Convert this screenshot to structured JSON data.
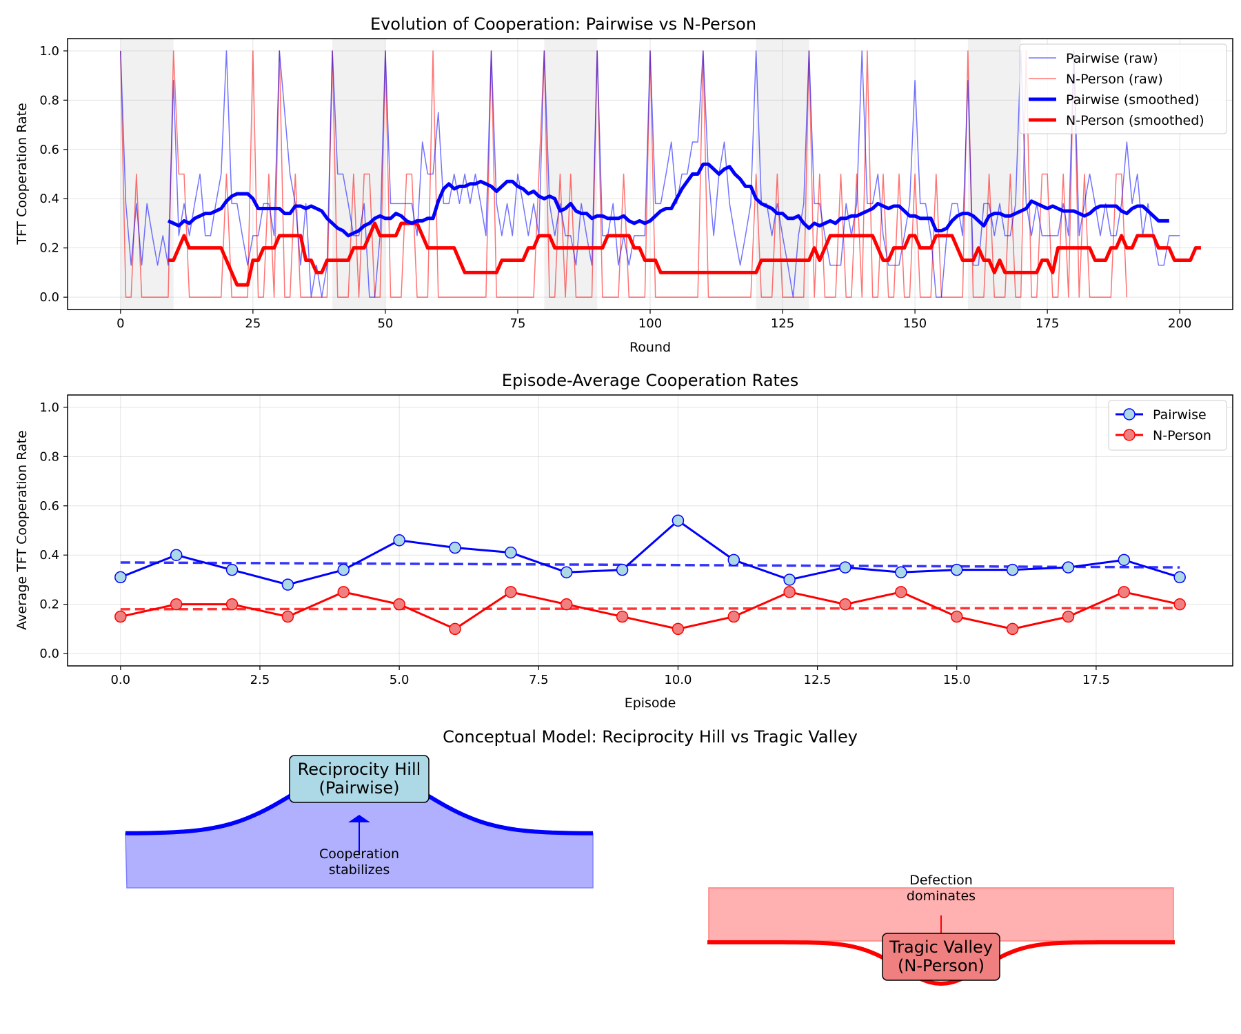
{
  "chart_data": [
    {
      "type": "line",
      "title": "Evolution of Cooperation: Pairwise vs N-Person",
      "xlabel": "Round",
      "ylabel": "TFT Cooperation Rate",
      "xlim": [
        -10,
        210
      ],
      "ylim": [
        -0.05,
        1.05
      ],
      "xticks": [
        0,
        25,
        50,
        75,
        100,
        125,
        150,
        175,
        200
      ],
      "yticks": [
        0.0,
        0.2,
        0.4,
        0.6,
        0.8,
        1.0
      ],
      "grid": true,
      "legend_position": "top-right",
      "shaded_episodes": [
        [
          0,
          10
        ],
        [
          40,
          50
        ],
        [
          80,
          90
        ],
        [
          120,
          130
        ],
        [
          160,
          170
        ]
      ],
      "x_start": 0,
      "smoothed_x_start": 9,
      "series": [
        {
          "name": "Pairwise (raw)",
          "color": "#0000ff",
          "values": [
            1.0,
            0.38,
            0.13,
            0.38,
            0.13,
            0.38,
            0.25,
            0.13,
            0.25,
            0.13,
            0.88,
            0.25,
            0.38,
            0.25,
            0.38,
            0.5,
            0.25,
            0.25,
            0.38,
            0.5,
            1.0,
            0.38,
            0.38,
            0.25,
            0.13,
            0.25,
            0.25,
            0.38,
            0.38,
            0.25,
            1.0,
            0.75,
            0.5,
            0.38,
            0.13,
            0.38,
            0.0,
            0.13,
            0.0,
            0.13,
            1.0,
            0.5,
            0.5,
            0.38,
            0.25,
            0.25,
            0.38,
            0.0,
            0.0,
            0.25,
            1.0,
            0.38,
            0.38,
            0.38,
            0.38,
            0.38,
            0.25,
            0.63,
            0.5,
            0.5,
            0.75,
            0.38,
            0.38,
            0.5,
            0.38,
            0.5,
            0.38,
            0.5,
            0.38,
            0.25,
            1.0,
            0.38,
            0.25,
            0.38,
            0.25,
            0.5,
            0.38,
            0.25,
            0.38,
            0.25,
            1.0,
            0.38,
            0.25,
            0.38,
            0.25,
            0.25,
            0.13,
            0.38,
            0.25,
            0.13,
            1.0,
            0.25,
            0.25,
            0.38,
            0.13,
            0.25,
            0.13,
            0.25,
            0.25,
            0.25,
            1.0,
            0.38,
            0.38,
            0.5,
            0.63,
            0.38,
            0.5,
            0.5,
            0.63,
            0.63,
            1.0,
            0.5,
            0.25,
            0.5,
            0.63,
            0.38,
            0.25,
            0.13,
            0.25,
            0.38,
            1.0,
            0.38,
            0.38,
            0.25,
            0.38,
            0.25,
            0.13,
            0.0,
            0.25,
            0.38,
            1.0,
            0.38,
            0.38,
            0.25,
            0.13,
            0.13,
            0.13,
            0.38,
            0.25,
            0.38,
            1.0,
            0.38,
            0.38,
            0.5,
            0.25,
            0.13,
            0.13,
            0.13,
            0.25,
            0.38,
            0.88,
            0.38,
            0.38,
            0.25,
            0.0,
            0.0,
            0.25,
            0.38,
            0.38,
            0.25,
            0.88,
            0.13,
            0.13,
            0.38,
            0.38,
            0.25,
            0.38,
            0.25,
            0.25,
            0.38,
            1.0,
            0.38,
            0.25,
            0.38,
            0.25,
            0.25,
            0.25,
            0.25,
            0.38,
            0.25,
            1.0,
            0.25,
            0.38,
            0.5,
            0.38,
            0.25,
            0.38,
            0.25,
            0.25,
            0.38,
            0.63,
            0.38,
            0.5,
            0.25,
            0.38,
            0.25,
            0.13,
            0.13,
            0.25,
            0.25,
            0.25
          ]
        },
        {
          "name": "N-Person (raw)",
          "color": "#ff0000",
          "values": [
            1.0,
            0.0,
            0.0,
            0.5,
            0.0,
            0.0,
            0.0,
            0.0,
            0.0,
            0.0,
            1.0,
            0.5,
            0.5,
            0.0,
            0.0,
            0.0,
            0.0,
            0.0,
            0.0,
            0.0,
            0.5,
            0.0,
            0.0,
            0.0,
            0.0,
            1.0,
            0.0,
            0.0,
            0.5,
            0.0,
            1.0,
            0.0,
            0.0,
            0.5,
            0.0,
            0.0,
            0.0,
            0.0,
            0.0,
            0.0,
            1.0,
            0.0,
            0.0,
            0.0,
            0.5,
            0.0,
            0.5,
            0.5,
            0.0,
            0.0,
            1.0,
            0.0,
            0.0,
            0.0,
            0.5,
            0.5,
            0.0,
            0.0,
            0.0,
            1.0,
            0.0,
            0.0,
            0.0,
            0.0,
            0.0,
            0.0,
            0.0,
            0.0,
            0.0,
            0.0,
            1.0,
            0.0,
            0.0,
            0.0,
            0.0,
            0.0,
            0.0,
            0.0,
            0.0,
            0.5,
            1.0,
            0.0,
            0.0,
            0.5,
            0.0,
            0.5,
            0.0,
            0.0,
            0.0,
            0.0,
            1.0,
            0.0,
            0.0,
            0.0,
            0.0,
            0.5,
            0.0,
            0.0,
            0.0,
            0.0,
            1.0,
            0.0,
            0.0,
            0.0,
            0.0,
            0.0,
            0.0,
            0.0,
            0.0,
            0.0,
            1.0,
            0.0,
            0.0,
            0.0,
            0.0,
            0.0,
            0.0,
            0.0,
            0.0,
            0.0,
            0.5,
            0.0,
            0.0,
            0.0,
            0.5,
            0.0,
            0.0,
            0.0,
            0.0,
            0.0,
            1.0,
            0.0,
            0.5,
            0.0,
            0.0,
            0.0,
            0.5,
            0.0,
            0.0,
            0.5,
            0.0,
            1.0,
            0.0,
            0.0,
            0.5,
            0.0,
            0.0,
            0.5,
            0.0,
            0.0,
            0.5,
            0.0,
            0.0,
            0.0,
            0.5,
            0.0,
            0.0,
            0.0,
            0.0,
            0.0,
            1.0,
            0.0,
            0.0,
            0.0,
            0.5,
            0.0,
            0.0,
            0.0,
            0.5,
            0.0,
            0.0,
            1.0,
            0.0,
            0.0,
            0.5,
            0.5,
            0.0,
            0.0,
            0.5,
            0.0,
            1.0,
            0.0,
            0.5,
            0.0,
            0.0,
            0.0,
            0.0,
            0.0,
            0.5,
            0.5,
            0.0
          ]
        },
        {
          "name": "Pairwise (smoothed)",
          "color": "#0000ff",
          "values": [
            0.31,
            0.3,
            0.29,
            0.31,
            0.3,
            0.32,
            0.33,
            0.34,
            0.34,
            0.35,
            0.36,
            0.39,
            0.41,
            0.42,
            0.42,
            0.42,
            0.4,
            0.36,
            0.36,
            0.36,
            0.36,
            0.36,
            0.34,
            0.34,
            0.37,
            0.37,
            0.36,
            0.37,
            0.36,
            0.35,
            0.32,
            0.3,
            0.28,
            0.27,
            0.25,
            0.26,
            0.27,
            0.29,
            0.3,
            0.32,
            0.33,
            0.32,
            0.32,
            0.34,
            0.33,
            0.31,
            0.3,
            0.31,
            0.31,
            0.32,
            0.32,
            0.39,
            0.44,
            0.46,
            0.44,
            0.45,
            0.45,
            0.46,
            0.46,
            0.47,
            0.46,
            0.45,
            0.43,
            0.45,
            0.47,
            0.47,
            0.45,
            0.44,
            0.42,
            0.43,
            0.41,
            0.4,
            0.41,
            0.4,
            0.35,
            0.36,
            0.38,
            0.35,
            0.34,
            0.34,
            0.32,
            0.33,
            0.33,
            0.32,
            0.32,
            0.32,
            0.33,
            0.31,
            0.3,
            0.31,
            0.3,
            0.31,
            0.33,
            0.35,
            0.36,
            0.36,
            0.4,
            0.44,
            0.47,
            0.5,
            0.5,
            0.54,
            0.54,
            0.52,
            0.5,
            0.52,
            0.53,
            0.5,
            0.48,
            0.45,
            0.45,
            0.4,
            0.38,
            0.37,
            0.36,
            0.34,
            0.34,
            0.32,
            0.32,
            0.33,
            0.3,
            0.28,
            0.3,
            0.29,
            0.3,
            0.31,
            0.3,
            0.32,
            0.32,
            0.33,
            0.33,
            0.34,
            0.35,
            0.36,
            0.38,
            0.37,
            0.36,
            0.37,
            0.37,
            0.35,
            0.33,
            0.33,
            0.32,
            0.32,
            0.32,
            0.27,
            0.27,
            0.28,
            0.31,
            0.33,
            0.34,
            0.34,
            0.33,
            0.31,
            0.29,
            0.33,
            0.34,
            0.34,
            0.33,
            0.33,
            0.34,
            0.35,
            0.36,
            0.39,
            0.38,
            0.37,
            0.36,
            0.37,
            0.36,
            0.35,
            0.35,
            0.35,
            0.34,
            0.33,
            0.34,
            0.36,
            0.37,
            0.37,
            0.37,
            0.37,
            0.35,
            0.34,
            0.36,
            0.37,
            0.37,
            0.35,
            0.33,
            0.31,
            0.31,
            0.31
          ]
        },
        {
          "name": "N-Person (smoothed)",
          "color": "#ff0000",
          "values": [
            0.15,
            0.15,
            0.2,
            0.25,
            0.2,
            0.2,
            0.2,
            0.2,
            0.2,
            0.2,
            0.2,
            0.15,
            0.1,
            0.05,
            0.05,
            0.05,
            0.15,
            0.15,
            0.2,
            0.2,
            0.2,
            0.25,
            0.25,
            0.25,
            0.25,
            0.25,
            0.15,
            0.15,
            0.1,
            0.1,
            0.15,
            0.15,
            0.15,
            0.15,
            0.15,
            0.2,
            0.2,
            0.2,
            0.25,
            0.3,
            0.25,
            0.25,
            0.25,
            0.25,
            0.3,
            0.3,
            0.3,
            0.3,
            0.25,
            0.2,
            0.2,
            0.2,
            0.2,
            0.2,
            0.2,
            0.15,
            0.1,
            0.1,
            0.1,
            0.1,
            0.1,
            0.1,
            0.1,
            0.15,
            0.15,
            0.15,
            0.15,
            0.15,
            0.2,
            0.2,
            0.25,
            0.25,
            0.25,
            0.2,
            0.2,
            0.2,
            0.2,
            0.2,
            0.2,
            0.2,
            0.2,
            0.2,
            0.2,
            0.25,
            0.25,
            0.25,
            0.25,
            0.25,
            0.2,
            0.2,
            0.15,
            0.15,
            0.15,
            0.1,
            0.1,
            0.1,
            0.1,
            0.1,
            0.1,
            0.1,
            0.1,
            0.1,
            0.1,
            0.1,
            0.1,
            0.1,
            0.1,
            0.1,
            0.1,
            0.1,
            0.1,
            0.1,
            0.15,
            0.15,
            0.15,
            0.15,
            0.15,
            0.15,
            0.15,
            0.15,
            0.15,
            0.15,
            0.2,
            0.15,
            0.2,
            0.25,
            0.25,
            0.25,
            0.25,
            0.25,
            0.25,
            0.25,
            0.25,
            0.25,
            0.2,
            0.15,
            0.15,
            0.2,
            0.2,
            0.2,
            0.25,
            0.25,
            0.2,
            0.2,
            0.2,
            0.25,
            0.25,
            0.25,
            0.25,
            0.2,
            0.15,
            0.15,
            0.15,
            0.2,
            0.15,
            0.15,
            0.1,
            0.15,
            0.1,
            0.1,
            0.1,
            0.1,
            0.1,
            0.1,
            0.1,
            0.15,
            0.15,
            0.1,
            0.2,
            0.2,
            0.2,
            0.2,
            0.2,
            0.2,
            0.2,
            0.15,
            0.15,
            0.15,
            0.2,
            0.2,
            0.25,
            0.2,
            0.2,
            0.25,
            0.25,
            0.25,
            0.25,
            0.2,
            0.2,
            0.2,
            0.15,
            0.15,
            0.15,
            0.15,
            0.2,
            0.2
          ]
        }
      ]
    },
    {
      "type": "line",
      "title": "Episode-Average Cooperation Rates",
      "xlabel": "Episode",
      "ylabel": "Average TFT Cooperation Rate",
      "xlim": [
        -0.95,
        19.95
      ],
      "ylim": [
        -0.05,
        1.05
      ],
      "xticks": [
        0.0,
        2.5,
        5.0,
        7.5,
        10.0,
        12.5,
        15.0,
        17.5
      ],
      "xtick_labels": [
        "0.0",
        "2.5",
        "5.0",
        "7.5",
        "10.0",
        "12.5",
        "15.0",
        "17.5"
      ],
      "yticks": [
        0.0,
        0.2,
        0.4,
        0.6,
        0.8,
        1.0
      ],
      "grid": true,
      "legend_position": "top-right",
      "x": [
        0,
        1,
        2,
        3,
        4,
        5,
        6,
        7,
        8,
        9,
        10,
        11,
        12,
        13,
        14,
        15,
        16,
        17,
        18,
        19
      ],
      "series": [
        {
          "name": "Pairwise",
          "color": "#0000ff",
          "marker_fill": "#add8e6",
          "values": [
            0.31,
            0.4,
            0.34,
            0.28,
            0.34,
            0.46,
            0.43,
            0.41,
            0.33,
            0.34,
            0.54,
            0.38,
            0.3,
            0.35,
            0.33,
            0.34,
            0.34,
            0.35,
            0.38,
            0.31
          ],
          "trend": [
            0.37,
            0.35
          ]
        },
        {
          "name": "N-Person",
          "color": "#ff0000",
          "marker_fill": "#f08080",
          "values": [
            0.15,
            0.2,
            0.2,
            0.15,
            0.25,
            0.2,
            0.1,
            0.25,
            0.2,
            0.15,
            0.1,
            0.15,
            0.25,
            0.2,
            0.25,
            0.15,
            0.1,
            0.15,
            0.25,
            0.2
          ],
          "trend": [
            0.18,
            0.185
          ]
        }
      ]
    }
  ],
  "conceptual": {
    "title": "Conceptual Model: Reciprocity Hill vs Tragic Valley",
    "hill": {
      "label_line1": "Reciprocity Hill",
      "label_line2": "(Pairwise)",
      "annotation_line1": "Cooperation",
      "annotation_line2": "stabilizes",
      "line_color": "#0000ff",
      "fill_color": "#b0b0ff",
      "box_color": "#add8e6"
    },
    "valley": {
      "label_line1": "Tragic Valley",
      "label_line2": "(N-Person)",
      "annotation_line1": "Defection",
      "annotation_line2": "dominates",
      "line_color": "#ff0000",
      "fill_color": "#ffb0b0",
      "box_color": "#f08080"
    }
  }
}
